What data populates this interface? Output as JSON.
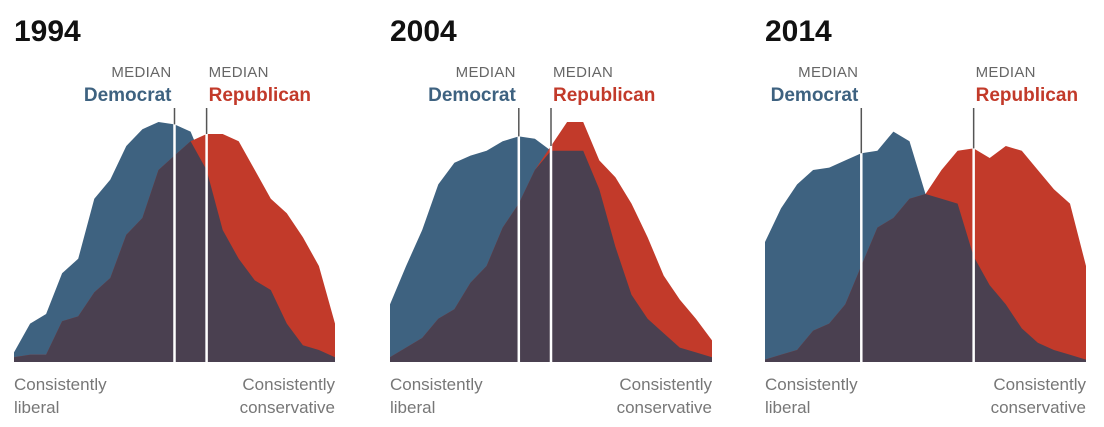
{
  "chart_data": [
    {
      "type": "area",
      "title": "1994",
      "x": [
        0,
        0.5,
        1,
        1.5,
        2,
        2.5,
        3,
        3.5,
        4,
        4.5,
        5,
        5.5,
        6,
        6.5,
        7,
        7.5,
        8,
        8.5,
        9,
        9.5,
        10
      ],
      "xlim": [
        0,
        10
      ],
      "ylim": [
        0,
        1
      ],
      "series": [
        {
          "name": "Democrat",
          "values": [
            0.04,
            0.16,
            0.2,
            0.37,
            0.43,
            0.68,
            0.76,
            0.9,
            0.97,
            1.0,
            0.99,
            0.96,
            0.8,
            0.55,
            0.43,
            0.34,
            0.3,
            0.16,
            0.07,
            0.05,
            0.02
          ]
        },
        {
          "name": "Republican",
          "values": [
            0.02,
            0.03,
            0.03,
            0.17,
            0.19,
            0.29,
            0.35,
            0.53,
            0.6,
            0.8,
            0.86,
            0.92,
            0.95,
            0.95,
            0.92,
            0.8,
            0.68,
            0.62,
            0.52,
            0.4,
            0.16
          ]
        }
      ],
      "medians": {
        "democrat": {
          "heading": "MEDIAN",
          "label": "Democrat",
          "x": 5.0
        },
        "republican": {
          "heading": "MEDIAN",
          "label": "Republican",
          "x": 6.0
        }
      },
      "xlabel_left": [
        "Consistently",
        "liberal"
      ],
      "xlabel_right": [
        "Consistently",
        "conservative"
      ]
    },
    {
      "type": "area",
      "title": "2004",
      "x": [
        0,
        0.5,
        1,
        1.5,
        2,
        2.5,
        3,
        3.5,
        4,
        4.5,
        5,
        5.5,
        6,
        6.5,
        7,
        7.5,
        8,
        8.5,
        9,
        9.5,
        10
      ],
      "xlim": [
        0,
        10
      ],
      "ylim": [
        0,
        1
      ],
      "series": [
        {
          "name": "Democrat",
          "values": [
            0.24,
            0.4,
            0.55,
            0.74,
            0.83,
            0.86,
            0.88,
            0.92,
            0.94,
            0.93,
            0.88,
            0.88,
            0.88,
            0.72,
            0.48,
            0.28,
            0.18,
            0.12,
            0.06,
            0.04,
            0.02
          ]
        },
        {
          "name": "Republican",
          "values": [
            0.02,
            0.06,
            0.1,
            0.18,
            0.22,
            0.33,
            0.4,
            0.56,
            0.66,
            0.8,
            0.9,
            1.0,
            1.0,
            0.84,
            0.77,
            0.66,
            0.52,
            0.36,
            0.26,
            0.18,
            0.09
          ]
        }
      ],
      "medians": {
        "democrat": {
          "heading": "MEDIAN",
          "label": "Democrat",
          "x": 4.0
        },
        "republican": {
          "heading": "MEDIAN",
          "label": "Republican",
          "x": 5.0
        }
      },
      "xlabel_left": [
        "Consistently",
        "liberal"
      ],
      "xlabel_right": [
        "Consistently",
        "conservative"
      ]
    },
    {
      "type": "area",
      "title": "2014",
      "x": [
        0,
        0.5,
        1,
        1.5,
        2,
        2.5,
        3,
        3.5,
        4,
        4.5,
        5,
        5.5,
        6,
        6.5,
        7,
        7.5,
        8,
        8.5,
        9,
        9.5,
        10
      ],
      "xlim": [
        0,
        10
      ],
      "ylim": [
        0,
        1
      ],
      "series": [
        {
          "name": "Democrat",
          "values": [
            0.5,
            0.64,
            0.74,
            0.8,
            0.81,
            0.84,
            0.87,
            0.88,
            0.96,
            0.92,
            0.7,
            0.68,
            0.66,
            0.44,
            0.32,
            0.24,
            0.14,
            0.08,
            0.05,
            0.03,
            0.01
          ]
        },
        {
          "name": "Republican",
          "values": [
            0.01,
            0.03,
            0.05,
            0.13,
            0.16,
            0.24,
            0.4,
            0.56,
            0.6,
            0.68,
            0.7,
            0.8,
            0.88,
            0.89,
            0.85,
            0.9,
            0.88,
            0.8,
            0.72,
            0.66,
            0.4
          ]
        }
      ],
      "medians": {
        "democrat": {
          "heading": "MEDIAN",
          "label": "Democrat",
          "x": 3.0
        },
        "republican": {
          "heading": "MEDIAN",
          "label": "Republican",
          "x": 6.5
        }
      },
      "xlabel_left": [
        "Consistently",
        "liberal"
      ],
      "xlabel_right": [
        "Consistently",
        "conservative"
      ]
    }
  ],
  "colors": {
    "democrat": "#3e6280",
    "republican": "#c23a2a",
    "overlap": "#4a4050",
    "median_line": "#ffffff",
    "median_heading": "#666666",
    "axis_text": "#777777"
  }
}
